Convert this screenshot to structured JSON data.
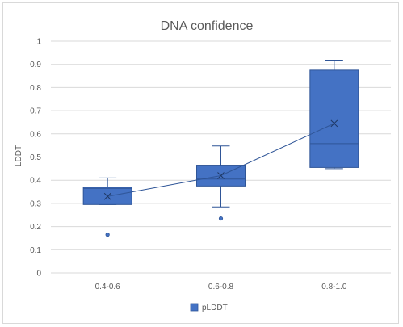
{
  "chart_data": {
    "type": "box",
    "title": "DNA confidence",
    "xlabel": "",
    "ylabel": "LDDT",
    "ylim": [
      0,
      1
    ],
    "yticks": [
      0,
      0.1,
      0.2,
      0.3,
      0.4,
      0.5,
      0.6,
      0.7,
      0.8,
      0.9,
      1
    ],
    "ytick_labels": [
      "0",
      "0.1",
      "0.2",
      "0.3",
      "0.4",
      "0.5",
      "0.6",
      "0.7",
      "0.8",
      "0.9",
      "1"
    ],
    "categories": [
      "0.4-0.6",
      "0.6-0.8",
      "0.8-1.0"
    ],
    "grid": true,
    "legend_position": "bottom",
    "series": [
      {
        "name": "pLDDT",
        "color": "#4472c4",
        "edge_color": "#2f5597",
        "boxes": [
          {
            "category": "0.4-0.6",
            "min": 0.295,
            "q1": 0.295,
            "median": 0.365,
            "q3": 0.37,
            "max": 0.41,
            "mean": 0.33,
            "outliers": [
              0.165
            ]
          },
          {
            "category": "0.6-0.8",
            "min": 0.285,
            "q1": 0.375,
            "median": 0.405,
            "q3": 0.465,
            "max": 0.548,
            "mean": 0.42,
            "outliers": [
              0.235
            ]
          },
          {
            "category": "0.8-1.0",
            "min": 0.45,
            "q1": 0.455,
            "median": 0.558,
            "q3": 0.875,
            "max": 0.918,
            "mean": 0.645,
            "outliers": []
          }
        ]
      }
    ]
  }
}
